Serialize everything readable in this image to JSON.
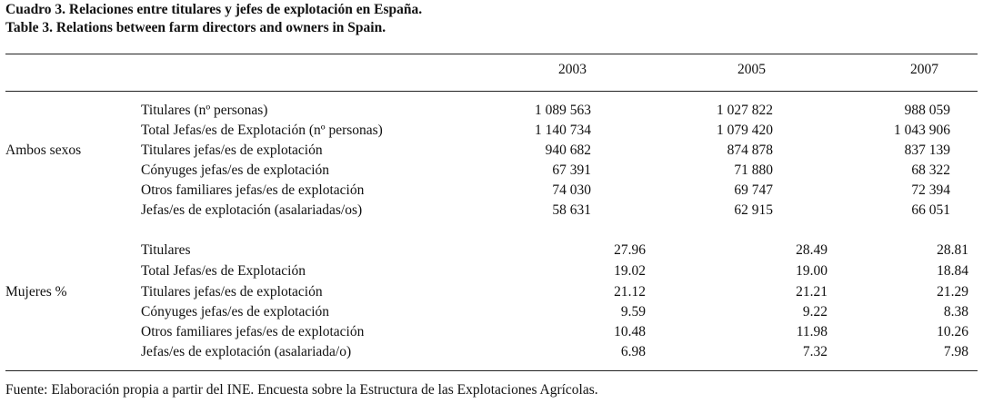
{
  "caption": {
    "line1": "Cuadro 3. Relaciones entre titulares y jefes de explotación en España.",
    "line2": "Table 3. Relations between farm directors and owners in Spain."
  },
  "years": [
    "2003",
    "2005",
    "2007"
  ],
  "sections": [
    {
      "label": "Ambos sexos",
      "rows": [
        {
          "name": "Titulares (nº personas)",
          "values": [
            "1 089 563",
            "1 027 822",
            "988 059"
          ]
        },
        {
          "name": "Total Jefas/es de Explotación (nº personas)",
          "values": [
            "1 140 734",
            "1 079 420",
            "1 043 906"
          ]
        },
        {
          "name": "Titulares jefas/es de explotación",
          "values": [
            "940 682",
            "874 878",
            "837 139"
          ]
        },
        {
          "name": "Cónyuges jefas/es de explotación",
          "values": [
            "67 391",
            "71 880",
            "68 322"
          ]
        },
        {
          "name": "Otros familiares jefas/es de explotación",
          "values": [
            "74 030",
            "69 747",
            "72 394"
          ]
        },
        {
          "name": "Jefas/es de explotación (asalariadas/os)",
          "values": [
            "58 631",
            "62 915",
            "66 051"
          ]
        }
      ]
    },
    {
      "label": "Mujeres %",
      "rows": [
        {
          "name": "Titulares",
          "values": [
            "27.96",
            "28.49",
            "28.81"
          ]
        },
        {
          "name": "Total Jefas/es de Explotación",
          "values": [
            "19.02",
            "19.00",
            "18.84"
          ]
        },
        {
          "name": "Titulares jefas/es de explotación",
          "values": [
            "21.12",
            "21.21",
            "21.29"
          ]
        },
        {
          "name": "Cónyuges jefas/es de explotación",
          "values": [
            "9.59",
            "9.22",
            "8.38"
          ]
        },
        {
          "name": "Otros familiares jefas/es de explotación",
          "values": [
            "10.48",
            "11.98",
            "10.26"
          ]
        },
        {
          "name": "Jefas/es de explotación (asalariada/o)",
          "values": [
            "6.98",
            "7.32",
            "7.98"
          ]
        }
      ]
    }
  ],
  "footer": "Fuente: Elaboración propia a partir del INE. Encuesta sobre la Estructura de las Explotaciones Agrícolas."
}
